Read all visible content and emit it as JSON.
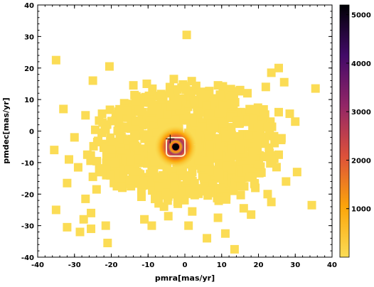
{
  "chart_data": {
    "type": "heatmap",
    "title": "",
    "xlabel": "pmra[mas/yr]",
    "ylabel": "pmdec[mas/yr]",
    "xlim": [
      -40,
      40
    ],
    "ylim": [
      -40,
      40
    ],
    "x_ticks": [
      "-40",
      "-30",
      "-20",
      "-10",
      "0",
      "10",
      "20",
      "30",
      "40"
    ],
    "y_ticks": [
      "-40",
      "-30",
      "-20",
      "-10",
      "0",
      "10",
      "20",
      "30",
      "40"
    ],
    "density_peak": {
      "x": -2.5,
      "y": -5.0,
      "value": 5200
    },
    "density_core_width": {
      "x": 1.4,
      "y": 1.4
    },
    "marker": {
      "symbol": "+",
      "x": -4.0,
      "y": -2.5
    },
    "cluster_extent": {
      "x_min": -24,
      "x_max": 24,
      "y_min": -22,
      "y_max": 14
    },
    "outliers": [
      [
        -35,
        22.5
      ],
      [
        -20.5,
        20.5
      ],
      [
        -25,
        16
      ],
      [
        -3,
        16.5
      ],
      [
        -14,
        14.5
      ],
      [
        0.5,
        30.5
      ],
      [
        9,
        14.5
      ],
      [
        15,
        13
      ],
      [
        17,
        12
      ],
      [
        22,
        14
      ],
      [
        23.5,
        18.5
      ],
      [
        25.5,
        20
      ],
      [
        27,
        15.5
      ],
      [
        35.5,
        13.5
      ],
      [
        -33,
        7
      ],
      [
        -27,
        5
      ],
      [
        -22.5,
        5.5
      ],
      [
        25.5,
        6
      ],
      [
        28.5,
        5.5
      ],
      [
        30,
        3
      ],
      [
        -30,
        -2
      ],
      [
        -35.5,
        -6
      ],
      [
        -31.5,
        -9
      ],
      [
        -26.5,
        -7.5
      ],
      [
        -29,
        -11.5
      ],
      [
        -25,
        -14.5
      ],
      [
        -32,
        -16.5
      ],
      [
        -24,
        -18.5
      ],
      [
        -27,
        -21.5
      ],
      [
        25.5,
        -7.5
      ],
      [
        23.5,
        -9
      ],
      [
        30.5,
        -13
      ],
      [
        27.5,
        -16
      ],
      [
        22.5,
        -20
      ],
      [
        -35,
        -25
      ],
      [
        -32,
        -30.5
      ],
      [
        -27.5,
        -28
      ],
      [
        -25.5,
        -26
      ],
      [
        -21.5,
        -30
      ],
      [
        -25.5,
        -31
      ],
      [
        -28.5,
        -32
      ],
      [
        -21,
        -35.5
      ],
      [
        -11,
        -28
      ],
      [
        -9,
        -30
      ],
      [
        -4.5,
        -27
      ],
      [
        1,
        -30
      ],
      [
        6,
        -34
      ],
      [
        11,
        -32.5
      ],
      [
        13.5,
        -37.5
      ],
      [
        18,
        -26.5
      ],
      [
        23.5,
        -22.5
      ],
      [
        34.5,
        -23.5
      ],
      [
        16,
        -24.5
      ],
      [
        9,
        -27.5
      ],
      [
        2,
        -25.5
      ]
    ],
    "colorbar": {
      "min": 0,
      "max": 5200,
      "ticks": [
        "1000",
        "2000",
        "3000",
        "4000",
        "5000"
      ],
      "colors": [
        "#fbdc55",
        "#fca50a",
        "#dd513a",
        "#932667",
        "#420a68",
        "#000004"
      ]
    }
  }
}
